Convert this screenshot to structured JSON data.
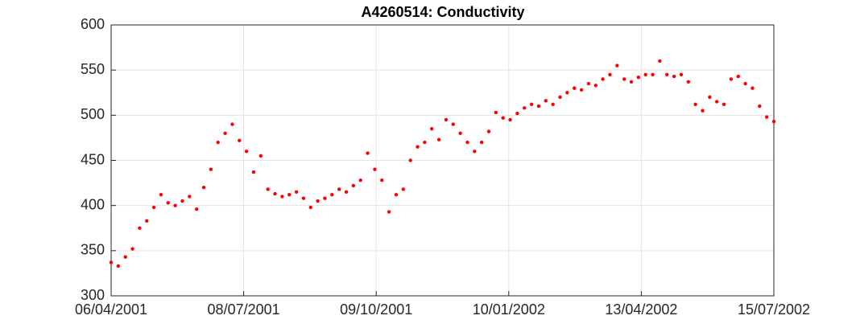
{
  "chart_data": {
    "type": "scatter",
    "title": "A4260514: Conductivity",
    "x": [
      "06/04/2001",
      "11/04/2001",
      "16/04/2001",
      "21/04/2001",
      "26/04/2001",
      "01/05/2001",
      "06/05/2001",
      "11/05/2001",
      "16/05/2001",
      "21/05/2001",
      "26/05/2001",
      "31/05/2001",
      "05/06/2001",
      "10/06/2001",
      "15/06/2001",
      "20/06/2001",
      "25/06/2001",
      "30/06/2001",
      "05/07/2001",
      "10/07/2001",
      "15/07/2001",
      "20/07/2001",
      "25/07/2001",
      "30/07/2001",
      "04/08/2001",
      "09/08/2001",
      "14/08/2001",
      "19/08/2001",
      "24/08/2001",
      "29/08/2001",
      "03/09/2001",
      "08/09/2001",
      "13/09/2001",
      "18/09/2001",
      "23/09/2001",
      "28/09/2001",
      "03/10/2001",
      "08/10/2001",
      "13/10/2001",
      "18/10/2001",
      "23/10/2001",
      "28/10/2001",
      "02/11/2001",
      "07/11/2001",
      "12/11/2001",
      "17/11/2001",
      "22/11/2001",
      "27/11/2001",
      "02/12/2001",
      "07/12/2001",
      "12/12/2001",
      "17/12/2001",
      "22/12/2001",
      "27/12/2001",
      "01/01/2002",
      "06/01/2002",
      "11/01/2002",
      "16/01/2002",
      "21/01/2002",
      "26/01/2002",
      "31/01/2002",
      "05/02/2002",
      "10/02/2002",
      "15/02/2002",
      "20/02/2002",
      "25/02/2002",
      "02/03/2002",
      "07/03/2002",
      "12/03/2002",
      "17/03/2002",
      "22/03/2002",
      "27/03/2002",
      "01/04/2002",
      "06/04/2002",
      "11/04/2002",
      "16/04/2002",
      "21/04/2002",
      "26/04/2002",
      "01/05/2002",
      "06/05/2002",
      "11/05/2002",
      "16/05/2002",
      "21/05/2002",
      "26/05/2002",
      "31/05/2002",
      "05/06/2002",
      "10/06/2002",
      "15/06/2002",
      "20/06/2002",
      "25/06/2002",
      "30/06/2002",
      "05/07/2002",
      "10/07/2002",
      "15/07/2002"
    ],
    "values": [
      337,
      333,
      343,
      352,
      375,
      383,
      398,
      412,
      403,
      400,
      405,
      410,
      396,
      420,
      440,
      470,
      480,
      490,
      472,
      460,
      437,
      455,
      418,
      413,
      410,
      412,
      415,
      408,
      398,
      405,
      408,
      412,
      418,
      415,
      422,
      428,
      458,
      440,
      428,
      393,
      412,
      418,
      450,
      465,
      470,
      485,
      473,
      495,
      490,
      480,
      470,
      460,
      470,
      482,
      503,
      497,
      495,
      502,
      508,
      512,
      510,
      516,
      512,
      520,
      525,
      530,
      528,
      535,
      533,
      540,
      545,
      555,
      540,
      537,
      542,
      545,
      545,
      560,
      545,
      543,
      545,
      537,
      512,
      505,
      520,
      515,
      512,
      540,
      543,
      535,
      530,
      510,
      498,
      493
    ],
    "color": "#ff0000",
    "xlim": [
      "06/04/2001",
      "15/07/2002"
    ],
    "xticks": [
      "06/04/2001",
      "08/07/2001",
      "09/10/2001",
      "10/01/2002",
      "13/04/2002",
      "15/07/2002"
    ],
    "ylim": [
      300,
      600
    ],
    "yticks": [
      300,
      350,
      400,
      450,
      500,
      550,
      600
    ],
    "grid": true
  }
}
